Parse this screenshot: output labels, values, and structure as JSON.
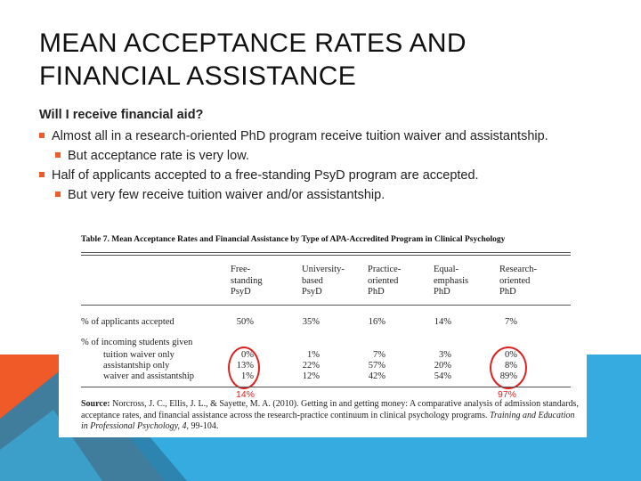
{
  "slide": {
    "title": "MEAN ACCEPTANCE RATES AND FINANCIAL ASSISTANCE",
    "heading": "Will I receive financial aid?",
    "bullets": [
      "Almost all in a research-oriented PhD program receive tuition waiver and assistantship.",
      "But acceptance rate is very low.",
      "Half of applicants accepted to a free-standing PsyD program are accepted.",
      "But very few receive tuition waiver and/or assistantship."
    ]
  },
  "colors": {
    "orange": "#f05a28",
    "blue": "#35abe0",
    "dark_blue": "#2c7fa8",
    "teal": "#2f97c4",
    "red": "#e02020"
  },
  "table": {
    "title": "Table 7.  Mean Acceptance Rates and Financial Assistance by Type of APA-Accredited Program in Clinical Psychology",
    "columns": [
      [
        "Free-",
        "standing",
        "PsyD"
      ],
      [
        "University-",
        "based",
        "PsyD"
      ],
      [
        "Practice-",
        "oriented",
        "PhD"
      ],
      [
        "Equal-",
        "emphasis",
        "PhD"
      ],
      [
        "Research-",
        "oriented",
        "PhD"
      ]
    ],
    "row_accepted": {
      "label": "% of applicants accepted",
      "values": [
        "50%",
        "35%",
        "16%",
        "14%",
        "7%"
      ]
    },
    "group_label": "% of incoming students given",
    "rows": [
      {
        "label": "tuition waiver only",
        "values": [
          "0%",
          "1%",
          "7%",
          "3%",
          "0%"
        ]
      },
      {
        "label": "assistantship only",
        "values": [
          "13%",
          "22%",
          "57%",
          "20%",
          "8%"
        ]
      },
      {
        "label": "waiver and assistantship",
        "values": [
          "1%",
          "12%",
          "42%",
          "54%",
          "89%"
        ]
      }
    ],
    "annotations": [
      "14%",
      "97%"
    ],
    "source_label": "Source:",
    "source_text": "  Norcross, J. C., Ellis, J. L., & Sayette, M. A. (2010).  Getting in and getting money:  A comparative analysis of admission standards, acceptance rates, and financial assistance across the research-practice continuum in clinical psychology programs. ",
    "source_journal": "Training and Education in Professional Psychology, 4,",
    "source_pages": " 99-104."
  }
}
